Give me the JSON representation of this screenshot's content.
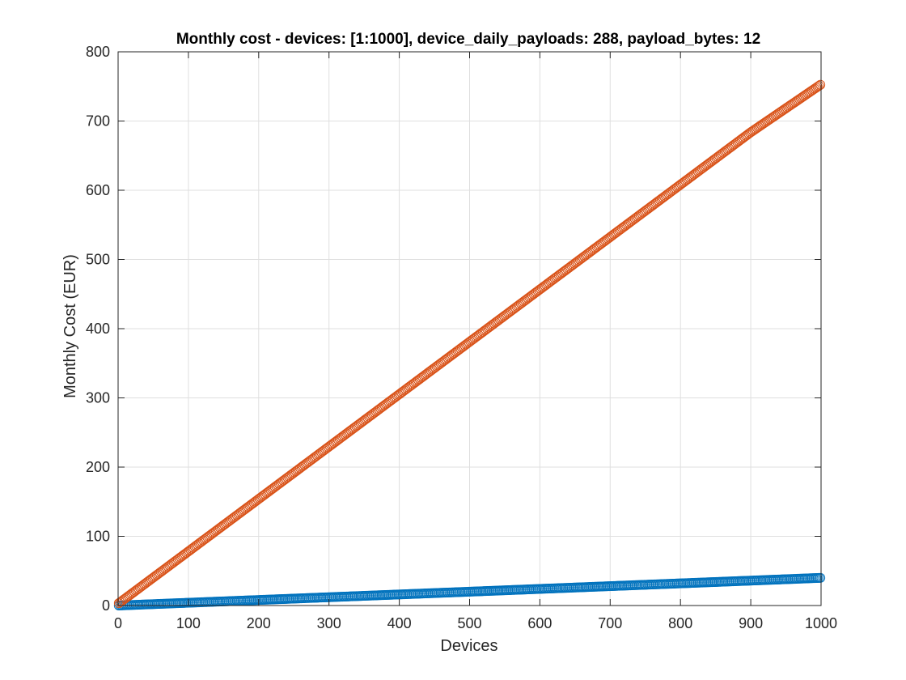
{
  "chart_data": {
    "type": "scatter",
    "title": "Monthly cost - devices: [1:1000], device_daily_payloads: 288, payload_bytes: 12",
    "xlabel": "Devices",
    "ylabel": "Monthly Cost (EUR)",
    "xlim": [
      0,
      1000
    ],
    "ylim": [
      0,
      800
    ],
    "xticks": [
      0,
      100,
      200,
      300,
      400,
      500,
      600,
      700,
      800,
      900,
      1000
    ],
    "yticks": [
      0,
      100,
      200,
      300,
      400,
      500,
      600,
      700,
      800
    ],
    "grid": true,
    "legend": "none",
    "marker": "open-circle",
    "x_range": [
      1,
      1000
    ],
    "series": [
      {
        "color": "#0072bd",
        "x": [
          1,
          100,
          200,
          300,
          400,
          500,
          600,
          700,
          800,
          900,
          1000
        ],
        "values": [
          0.04,
          4.0,
          8.0,
          12.0,
          16.0,
          20.0,
          24.0,
          28.0,
          32.0,
          36.0,
          40.0
        ]
      },
      {
        "color": "#d95319",
        "x": [
          1,
          100,
          200,
          300,
          400,
          500,
          600,
          700,
          800,
          900,
          1000
        ],
        "values": [
          3.3,
          78.2,
          153.9,
          229.6,
          305.3,
          381.0,
          456.7,
          532.4,
          608.1,
          683.8,
          753.0
        ]
      }
    ]
  }
}
